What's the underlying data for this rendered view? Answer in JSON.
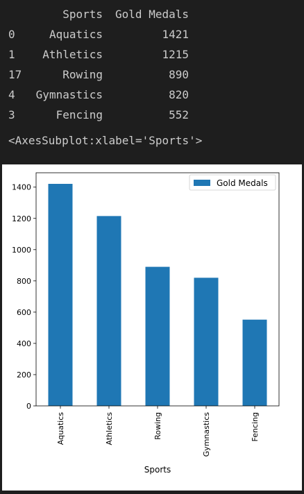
{
  "dataframe": {
    "headers": {
      "sport": "Sports",
      "gold": "Gold Medals"
    },
    "rows": [
      {
        "index": "0",
        "sport": "Aquatics",
        "gold": "1421"
      },
      {
        "index": "1",
        "sport": "Athletics",
        "gold": "1215"
      },
      {
        "index": "17",
        "sport": "Rowing",
        "gold": "890"
      },
      {
        "index": "4",
        "sport": "Gymnastics",
        "gold": "820"
      },
      {
        "index": "3",
        "sport": "Fencing",
        "gold": "552"
      }
    ]
  },
  "repr_text": "<AxesSubplot:xlabel='Sports'>",
  "colors": {
    "bar": "#1f77b4",
    "output_bg": "#1e1e1e",
    "output_text": "#cccccc"
  },
  "chart_data": {
    "type": "bar",
    "categories": [
      "Aquatics",
      "Athletics",
      "Rowing",
      "Gymnastics",
      "Fencing"
    ],
    "series": [
      {
        "name": "Gold Medals",
        "values": [
          1421,
          1215,
          890,
          820,
          552
        ]
      }
    ],
    "xlabel": "Sports",
    "ylabel": "",
    "ylim": [
      0,
      1492
    ],
    "yticks": [
      0,
      200,
      400,
      600,
      800,
      1000,
      1200,
      1400
    ],
    "legend": "top-right",
    "grid": false
  }
}
